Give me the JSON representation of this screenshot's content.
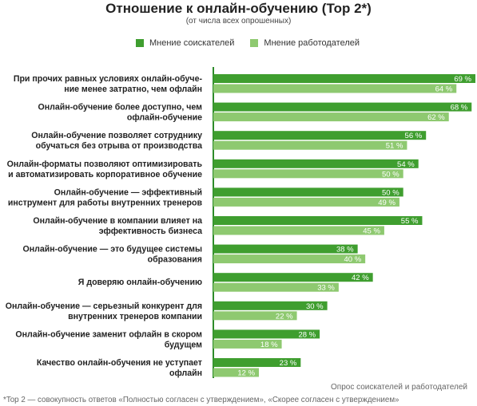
{
  "chart_data": {
    "type": "bar",
    "orientation": "horizontal",
    "title": "Отношение к онлайн-обучению (Top 2*)",
    "subtitle": "(от числа всех опрошенных)",
    "categories": [
      [
        "При прочих равных условиях онлайн-обуче-",
        "ние менее затратно, чем офлайн"
      ],
      [
        "Онлайн-обучение более доступно, чем",
        "офлайн-обучение"
      ],
      [
        "Онлайн-обучение позволяет сотруднику",
        "обучаться без отрыва от производства"
      ],
      [
        "Онлайн-форматы позволяют оптимизировать",
        "и автоматизировать корпоративное обучение"
      ],
      [
        "Онлайн-обучение — эффективный",
        "инструмент для работы внутренних тренеров"
      ],
      [
        "Онлайн-обучение в компании влияет на",
        "эффективность бизнеса"
      ],
      [
        "Онлайн-обучение — это будущее системы",
        "образования"
      ],
      [
        "Я доверяю онлайн-обучению"
      ],
      [
        "Онлайн-обучение — серьезный конкурент для",
        "внутренних тренеров компании"
      ],
      [
        "Онлайн-обучение заменит офлайн в скором",
        "будущем"
      ],
      [
        "Качество онлайн-обучения не уступает",
        "офлайн"
      ]
    ],
    "series": [
      {
        "name": "Мнение соискателей",
        "color": "#3f9e2f",
        "values": [
          69,
          68,
          56,
          54,
          50,
          55,
          38,
          42,
          30,
          28,
          23
        ]
      },
      {
        "name": "Мнение работодателей",
        "color": "#8ec970",
        "values": [
          64,
          62,
          51,
          50,
          49,
          45,
          40,
          33,
          22,
          18,
          12
        ]
      }
    ],
    "value_suffix": " %",
    "xlim": [
      0,
      69
    ]
  },
  "source": "Опрос соискателей и работодателей",
  "footnote": "*Top 2 — совокупность ответов «Полностью согласен с утверждением», «Скорее согласен с утверждением»"
}
